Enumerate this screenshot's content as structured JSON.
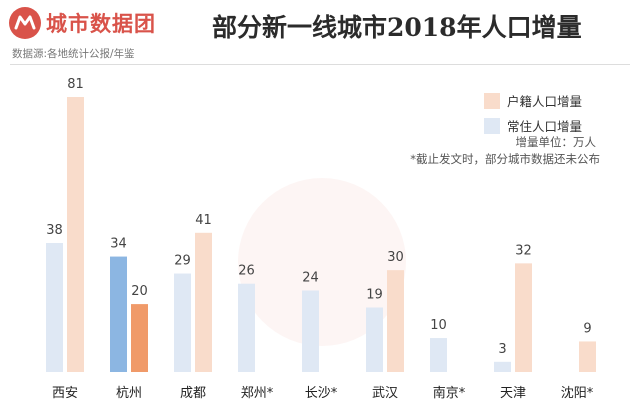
{
  "header": {
    "brand": "城市数据团",
    "source": "数据源:各地统计公报/年鉴",
    "title": "部分新一线城市2018年人口增量"
  },
  "legend": {
    "items": [
      {
        "label": "户籍人口增量",
        "color": "#f9dccb"
      },
      {
        "label": "常住人口增量",
        "color": "#dfe8f4"
      }
    ],
    "unit": "增量单位：万人",
    "note": "*截止发文时，部分城市数据还未公布"
  },
  "colors": {
    "resident": "#dfe8f4",
    "hukou": "#f9dccb",
    "resident_highlight": "#8cb6e2",
    "hukou_highlight": "#f09a69",
    "brand": "#d9534a"
  },
  "chart_data": {
    "type": "bar",
    "title": "部分新一线城市2018年人口增量",
    "categories": [
      "西安",
      "杭州",
      "成都",
      "郑州*",
      "长沙*",
      "武汉",
      "南京*",
      "天津",
      "沈阳*"
    ],
    "series": [
      {
        "name": "常住人口增量",
        "values": [
          38,
          34,
          29,
          26,
          24,
          19,
          10,
          3,
          null
        ]
      },
      {
        "name": "户籍人口增量",
        "values": [
          81,
          20,
          41,
          null,
          null,
          30,
          null,
          32,
          9
        ]
      }
    ],
    "highlight_category": "杭州",
    "unit": "万人",
    "ylim": [
      0,
      81
    ],
    "grid": false,
    "legend_position": "top-right"
  }
}
